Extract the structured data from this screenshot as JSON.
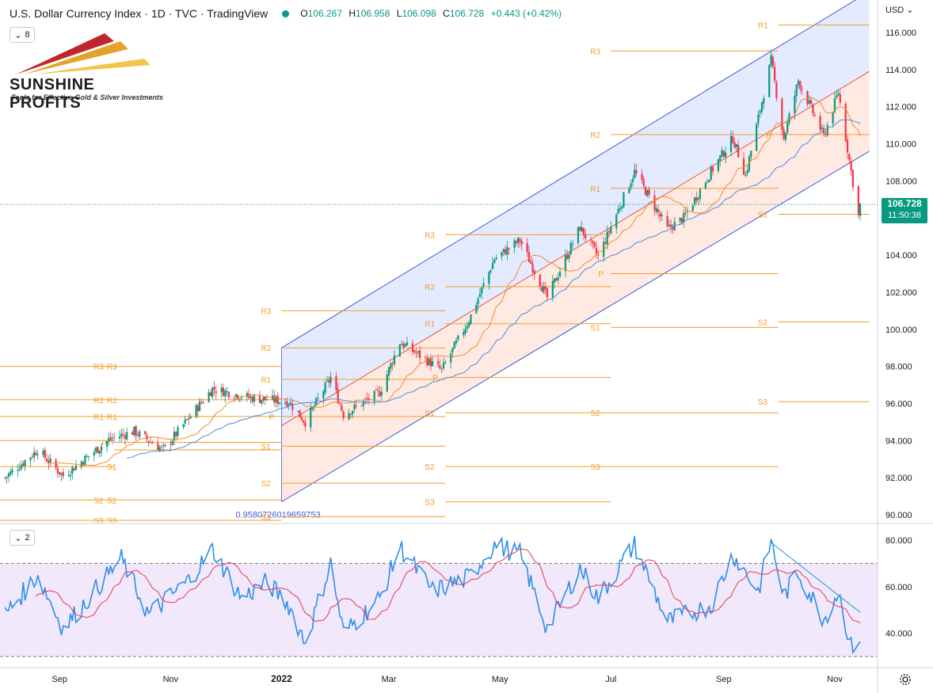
{
  "header": {
    "title": "U.S. Dollar Currency Index · 1D · TVC · TradingView",
    "ohlc": {
      "open_label": "O",
      "open": "106.267",
      "high_label": "H",
      "high": "106.958",
      "low_label": "L",
      "low": "106.098",
      "close_label": "C",
      "close": "106.728",
      "change": "+0.443 (+0.42%)"
    },
    "status_color": "#089981"
  },
  "indicator_counts": {
    "price_pane": "8",
    "rsi_pane": "2"
  },
  "logo": {
    "brand": "SUNSHINE PROFITS",
    "tagline": "Tools for Effective Gold & Silver Investments"
  },
  "currency": "USD",
  "last_price": {
    "value": "106.728",
    "countdown": "11:50:38"
  },
  "fib_label": "0.9580726019659753",
  "colors": {
    "up": "#089981",
    "down": "#f23645",
    "pivot": "#f59b27",
    "channel": "#3b5bdb",
    "rsi": "#2e8fe6",
    "rsi_ma": "#e8384f"
  },
  "chart_data": {
    "type": "candlestick",
    "title": "U.S. Dollar Currency Index",
    "price_axis": {
      "ticks": [
        "116.000",
        "114.000",
        "112.000",
        "110.000",
        "108.000",
        "106.000",
        "104.000",
        "102.000",
        "100.000",
        "98.000",
        "96.000",
        "94.000",
        "92.000",
        "90.000"
      ],
      "range": [
        89.5,
        117.5
      ]
    },
    "rsi_axis": {
      "ticks": [
        "80.000",
        "60.000",
        "40.000"
      ],
      "range": [
        26,
        84
      ],
      "overbought": 70,
      "oversold": 30
    },
    "time_axis": {
      "labels": [
        "Sep",
        "Nov",
        "2022",
        "Mar",
        "May",
        "Jul",
        "Sep",
        "Nov"
      ],
      "bold": [
        "2022"
      ]
    },
    "price_path": [
      [
        "2021-08-02",
        92.0
      ],
      [
        "2021-08-20",
        93.5
      ],
      [
        "2021-09-03",
        92.1
      ],
      [
        "2021-09-29",
        94.1
      ],
      [
        "2021-10-12",
        94.5
      ],
      [
        "2021-10-28",
        93.5
      ],
      [
        "2021-11-24",
        96.8
      ],
      [
        "2021-12-15",
        96.3
      ],
      [
        "2022-01-05",
        96.1
      ],
      [
        "2022-01-14",
        95.0
      ],
      [
        "2022-01-28",
        97.4
      ],
      [
        "2022-02-04",
        95.4
      ],
      [
        "2022-02-24",
        96.6
      ],
      [
        "2022-03-07",
        99.3
      ],
      [
        "2022-03-30",
        97.8
      ],
      [
        "2022-04-14",
        100.5
      ],
      [
        "2022-04-28",
        103.8
      ],
      [
        "2022-05-12",
        104.8
      ],
      [
        "2022-05-27",
        101.7
      ],
      [
        "2022-06-14",
        105.5
      ],
      [
        "2022-06-24",
        103.9
      ],
      [
        "2022-07-14",
        108.5
      ],
      [
        "2022-08-01",
        105.4
      ],
      [
        "2022-08-10",
        106.0
      ],
      [
        "2022-08-25",
        108.5
      ],
      [
        "2022-09-06",
        110.3
      ],
      [
        "2022-09-13",
        108.3
      ],
      [
        "2022-09-27",
        114.5
      ],
      [
        "2022-10-04",
        110.3
      ],
      [
        "2022-10-12",
        113.4
      ],
      [
        "2022-10-26",
        110.4
      ],
      [
        "2022-11-03",
        112.8
      ],
      [
        "2022-11-10",
        108.5
      ],
      [
        "2022-11-14",
        106.1
      ],
      [
        "2022-11-15",
        106.7
      ]
    ],
    "rsi_path": [
      [
        "2021-08-02",
        48
      ],
      [
        "2021-08-20",
        65
      ],
      [
        "2021-09-03",
        42
      ],
      [
        "2021-09-20",
        58
      ],
      [
        "2021-10-05",
        72
      ],
      [
        "2021-10-20",
        48
      ],
      [
        "2021-11-10",
        62
      ],
      [
        "2021-11-24",
        76
      ],
      [
        "2021-12-10",
        55
      ],
      [
        "2021-12-24",
        62
      ],
      [
        "2022-01-05",
        52
      ],
      [
        "2022-01-14",
        36
      ],
      [
        "2022-01-28",
        70
      ],
      [
        "2022-02-04",
        40
      ],
      [
        "2022-02-24",
        55
      ],
      [
        "2022-03-07",
        77
      ],
      [
        "2022-03-25",
        58
      ],
      [
        "2022-04-14",
        64
      ],
      [
        "2022-04-28",
        78
      ],
      [
        "2022-05-12",
        74
      ],
      [
        "2022-05-27",
        42
      ],
      [
        "2022-06-14",
        68
      ],
      [
        "2022-06-24",
        55
      ],
      [
        "2022-07-14",
        78
      ],
      [
        "2022-08-01",
        45
      ],
      [
        "2022-08-25",
        52
      ],
      [
        "2022-09-06",
        74
      ],
      [
        "2022-09-20",
        58
      ],
      [
        "2022-09-27",
        80
      ],
      [
        "2022-10-04",
        56
      ],
      [
        "2022-10-12",
        66
      ],
      [
        "2022-10-26",
        46
      ],
      [
        "2022-11-03",
        58
      ],
      [
        "2022-11-10",
        34
      ],
      [
        "2022-11-15",
        38
      ]
    ],
    "channel": {
      "upper": [
        [
          "2022-01-01",
          99.0
        ],
        [
          "2022-11-20",
          118.2
        ]
      ],
      "lower": [
        [
          "2022-01-01",
          90.7
        ],
        [
          "2022-11-20",
          109.6
        ]
      ],
      "median": [
        [
          "2022-01-01",
          94.8
        ],
        [
          "2022-11-20",
          113.9
        ]
      ],
      "fib_ratio": "0.9580726019659753"
    },
    "rsi_trendline": [
      [
        "2022-09-27",
        79
      ],
      [
        "2022-11-15",
        49
      ]
    ],
    "pivots": [
      {
        "period": "2021-Q3",
        "start": "2021-07-01",
        "end": "2021-10-01",
        "levels": {
          "R3": 98.0,
          "R2": 96.2,
          "R1": 95.3,
          "P": 94.0,
          "S1": 92.6,
          "S2": 90.8,
          "S3": 89.7
        }
      },
      {
        "period": "2021-Q4",
        "start": "2021-10-01",
        "end": "2022-01-01",
        "levels": {
          "R3": 98.0,
          "R2": 96.2,
          "R1": 95.3,
          "P": 93.9,
          "S1": 93.5,
          "S2": 90.8,
          "S3": 89.7
        }
      },
      {
        "period": "2022-Q1",
        "start": "2022-01-01",
        "end": "2022-04-01",
        "levels": {
          "R3": 101.0,
          "R2": 99.0,
          "R1": 97.3,
          "P": 95.3,
          "S1": 93.7,
          "S2": 91.7,
          "S3": 89.9
        }
      },
      {
        "period": "2022-Q2",
        "start": "2022-04-01",
        "end": "2022-07-01",
        "levels": {
          "R3": 105.1,
          "R2": 102.3,
          "R1": 100.3,
          "P": 97.4,
          "S1": 95.5,
          "S2": 92.6,
          "S3": 90.7
        }
      },
      {
        "period": "2022-Q3",
        "start": "2022-07-01",
        "end": "2022-10-01",
        "levels": {
          "R3": 115.0,
          "R2": 110.5,
          "R1": 107.6,
          "P": 103.0,
          "S1": 100.1,
          "S2": 95.5,
          "S3": 92.6
        }
      },
      {
        "period": "2022-Q4",
        "start": "2022-10-01",
        "end": "2022-11-20",
        "levels": {
          "R1": 116.4,
          "P": 110.5,
          "S1": 106.2,
          "S2": 100.4,
          "S3": 96.1
        }
      }
    ],
    "grid": false,
    "legend": "top-left"
  }
}
